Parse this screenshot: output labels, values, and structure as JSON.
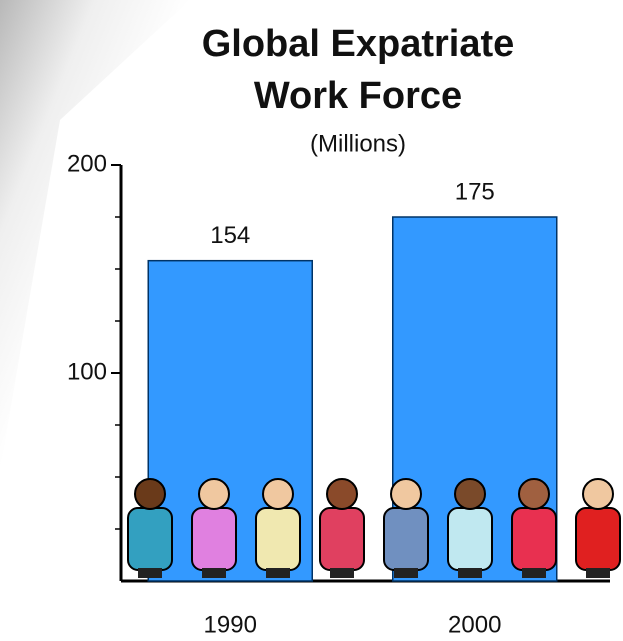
{
  "chart_data": {
    "type": "bar",
    "title": [
      "Global Expatriate",
      "Work Force"
    ],
    "subtitle": "(Millions)",
    "categories": [
      "1990",
      "2000"
    ],
    "values": [
      154,
      175
    ],
    "color": "#3399ff",
    "ylim": [
      0,
      200
    ],
    "yticks": [
      100,
      200
    ],
    "minor_yticks": [
      25,
      50,
      75,
      125,
      150,
      175
    ]
  }
}
